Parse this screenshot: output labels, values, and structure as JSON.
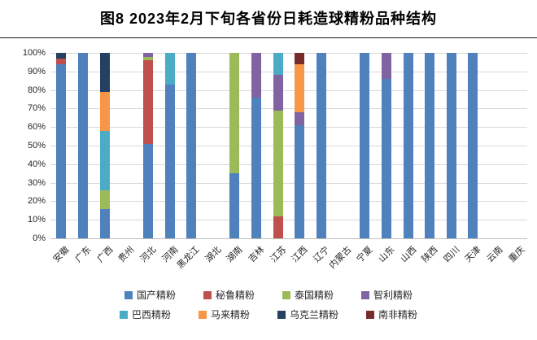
{
  "page": {
    "title": "图8  2023年2月下旬各省份日耗造球精粉品种结构"
  },
  "chart_data": {
    "type": "bar",
    "subtype": "stacked-100-percent",
    "title": "图8  2023年2月下旬各省份日耗造球精粉品种结构",
    "xlabel": "",
    "ylabel": "",
    "ylim": [
      0,
      100
    ],
    "y_ticks": [
      "0%",
      "10%",
      "20%",
      "30%",
      "40%",
      "50%",
      "60%",
      "70%",
      "80%",
      "90%",
      "100%"
    ],
    "grid": true,
    "legend_position": "bottom",
    "categories": [
      "安徽",
      "广东",
      "广西",
      "贵州",
      "河北",
      "河南",
      "黑龙江",
      "湖北",
      "湖南",
      "吉林",
      "江苏",
      "江西",
      "辽宁",
      "内蒙古",
      "宁夏",
      "山东",
      "山西",
      "陕西",
      "四川",
      "天津",
      "云南",
      "重庆"
    ],
    "series": [
      {
        "name": "国产精粉",
        "color": "#4f81bd",
        "values": [
          94,
          100,
          16,
          0,
          51,
          83,
          100,
          0,
          35,
          76,
          0,
          61,
          100,
          0,
          100,
          86,
          100,
          100,
          100,
          100,
          0,
          0
        ]
      },
      {
        "name": "秘鲁精粉",
        "color": "#c0504d",
        "values": [
          3,
          0,
          0,
          0,
          45,
          0,
          0,
          0,
          0,
          0,
          12,
          0,
          0,
          0,
          0,
          0,
          0,
          0,
          0,
          0,
          0,
          0
        ]
      },
      {
        "name": "泰国精粉",
        "color": "#9bbb59",
        "values": [
          0,
          0,
          10,
          0,
          2,
          0,
          0,
          0,
          65,
          0,
          57,
          0,
          0,
          0,
          0,
          0,
          0,
          0,
          0,
          0,
          0,
          0
        ]
      },
      {
        "name": "智利精粉",
        "color": "#8064a2",
        "values": [
          0,
          0,
          0,
          0,
          2,
          0,
          0,
          0,
          0,
          24,
          19,
          7,
          0,
          0,
          0,
          14,
          0,
          0,
          0,
          0,
          0,
          0
        ]
      },
      {
        "name": "巴西精粉",
        "color": "#4bacc6",
        "values": [
          0,
          0,
          32,
          0,
          0,
          17,
          0,
          0,
          0,
          0,
          12,
          0,
          0,
          0,
          0,
          0,
          0,
          0,
          0,
          0,
          0,
          0
        ]
      },
      {
        "name": "马来精粉",
        "color": "#f79646",
        "values": [
          0,
          0,
          21,
          0,
          0,
          0,
          0,
          0,
          0,
          0,
          0,
          26,
          0,
          0,
          0,
          0,
          0,
          0,
          0,
          0,
          0,
          0
        ]
      },
      {
        "name": "乌克兰精粉",
        "color": "#254061",
        "values": [
          3,
          0,
          21,
          0,
          0,
          0,
          0,
          0,
          0,
          0,
          0,
          0,
          0,
          0,
          0,
          0,
          0,
          0,
          0,
          0,
          0,
          0
        ]
      },
      {
        "name": "南非精粉",
        "color": "#772c2a",
        "values": [
          0,
          0,
          0,
          0,
          0,
          0,
          0,
          0,
          0,
          0,
          0,
          6,
          0,
          0,
          0,
          0,
          0,
          0,
          0,
          0,
          0,
          0
        ]
      }
    ]
  }
}
